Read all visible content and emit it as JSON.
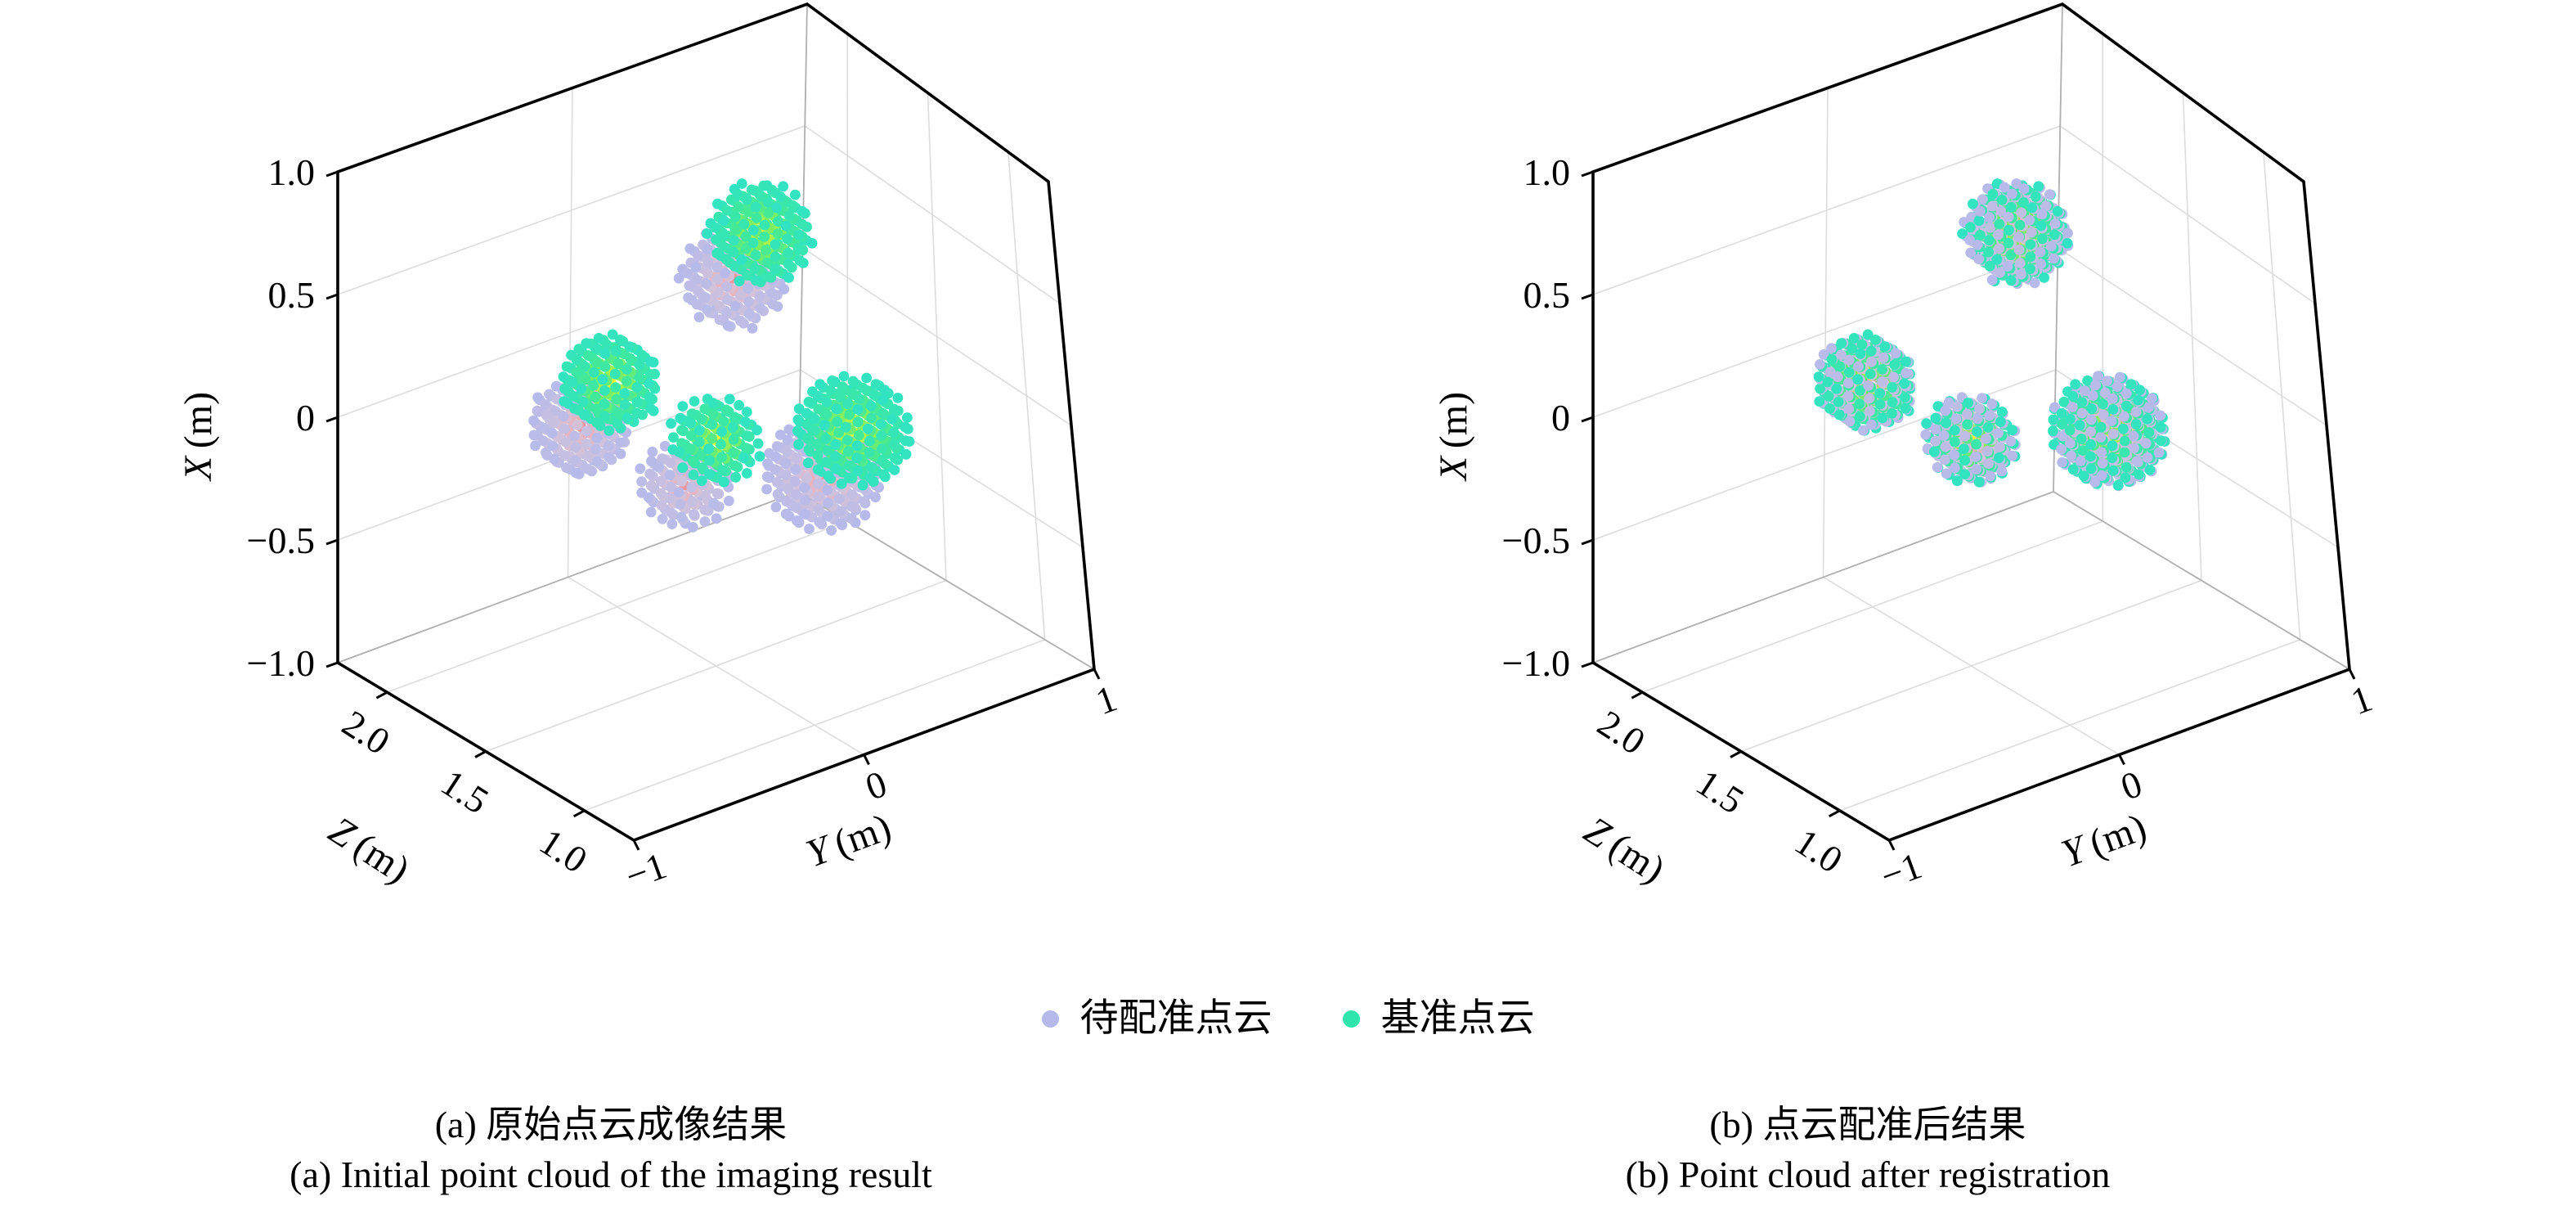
{
  "figure": {
    "legend": {
      "items": [
        {
          "label": "待配准点云",
          "color": "#b6baea"
        },
        {
          "label": "基准点云",
          "color": "#2ee6ad"
        }
      ]
    }
  },
  "chart_data": [
    {
      "type": "scatter",
      "subtype": "scatter3d-pointcloud",
      "title": "(a) 原始点云成像结果",
      "subtitle": "(a) Initial point cloud of the imaging result",
      "registered": false,
      "grid": true,
      "legend_position": "bottom-center",
      "axes": {
        "x": {
          "label_letter": "X",
          "label_unit": "(m)",
          "range": [
            -1,
            1
          ],
          "ticks": [
            "1.0",
            "0.5",
            "0",
            "−0.5",
            "−1.0"
          ],
          "tick_values": [
            1,
            0.5,
            0,
            -0.5,
            -1
          ]
        },
        "y": {
          "label_letter": "Y",
          "label_unit": "(m)",
          "range": [
            -1,
            1
          ],
          "ticks": [
            "−1",
            "0",
            "1"
          ],
          "tick_values": [
            -1,
            0,
            1
          ]
        },
        "z": {
          "label_letter": "Z",
          "label_unit": "(m)",
          "range": [
            0.75,
            2.25
          ],
          "ticks": [
            "2.0",
            "1.5",
            "1.0"
          ],
          "tick_values": [
            2,
            1.5,
            1
          ]
        }
      },
      "lattice_spacing": 0.052,
      "series": [
        {
          "name": "待配准点云",
          "marker_color": "#b6baea",
          "lattice_offset": 0,
          "colormap": [
            [
              0,
              "#b6baea"
            ],
            [
              0.5,
              "#d2c3db"
            ],
            [
              0.78,
              "#eeafb7"
            ],
            [
              1,
              "#f0959b"
            ]
          ],
          "clusters": [
            {
              "y": 0.2,
              "z": 1.58,
              "x": 0.48,
              "r": 0.19
            },
            {
              "y": -0.4,
              "z": 1.68,
              "x": 0.03,
              "r": 0.18
            },
            {
              "y": 0.0,
              "z": 1.63,
              "x": -0.32,
              "r": 0.16
            },
            {
              "y": 0.55,
              "z": 1.58,
              "x": -0.45,
              "r": 0.2
            }
          ]
        },
        {
          "name": "基准点云",
          "marker_color": "#2ee6ad",
          "lattice_offset": 0,
          "colormap": [
            [
              0,
              "#31e3c4"
            ],
            [
              0.35,
              "#3ee99e"
            ],
            [
              0.6,
              "#7cee62"
            ],
            [
              0.82,
              "#c9f243"
            ],
            [
              1,
              "#f3f437"
            ]
          ],
          "clusters": [
            {
              "y": 0.2,
              "z": 1.4,
              "x": 0.75,
              "r": 0.19
            },
            {
              "y": -0.4,
              "z": 1.5,
              "x": 0.3,
              "r": 0.18
            },
            {
              "y": 0.0,
              "z": 1.45,
              "x": -0.05,
              "r": 0.16
            },
            {
              "y": 0.55,
              "z": 1.4,
              "x": -0.18,
              "r": 0.2
            }
          ]
        }
      ]
    },
    {
      "type": "scatter",
      "subtype": "scatter3d-pointcloud",
      "title": "(b) 点云配准后结果",
      "subtitle": "(b) Point cloud after registration",
      "registered": true,
      "grid": true,
      "legend_position": "bottom-center",
      "axes": {
        "x": {
          "label_letter": "X",
          "label_unit": "(m)",
          "range": [
            -1,
            1
          ],
          "ticks": [
            "1.0",
            "0.5",
            "0",
            "−0.5",
            "−1.0"
          ],
          "tick_values": [
            1,
            0.5,
            0,
            -0.5,
            -1
          ]
        },
        "y": {
          "label_letter": "Y",
          "label_unit": "(m)",
          "range": [
            -1,
            1
          ],
          "ticks": [
            "−1",
            "0",
            "1"
          ],
          "tick_values": [
            -1,
            0,
            1
          ]
        },
        "z": {
          "label_letter": "Z",
          "label_unit": "(m)",
          "range": [
            0.75,
            2.25
          ],
          "ticks": [
            "2.0",
            "1.5",
            "1.0"
          ],
          "tick_values": [
            2,
            1.5,
            1
          ]
        }
      },
      "lattice_spacing": 0.052,
      "series": [
        {
          "name": "待配准点云",
          "marker_color": "#b6baea",
          "lattice_offset": 0.5,
          "colormap": [
            [
              0,
              "#b6baea"
            ],
            [
              0.5,
              "#d2c3db"
            ],
            [
              0.78,
              "#eeafb7"
            ],
            [
              1,
              "#f0959b"
            ]
          ],
          "clusters": [
            {
              "y": 0.2,
              "z": 1.4,
              "x": 0.75,
              "r": 0.19
            },
            {
              "y": -0.4,
              "z": 1.5,
              "x": 0.3,
              "r": 0.18
            },
            {
              "y": 0.0,
              "z": 1.45,
              "x": -0.05,
              "r": 0.16
            },
            {
              "y": 0.55,
              "z": 1.4,
              "x": -0.18,
              "r": 0.2
            }
          ]
        },
        {
          "name": "基准点云",
          "marker_color": "#2ee6ad",
          "lattice_offset": 0,
          "colormap": [
            [
              0,
              "#31e3c4"
            ],
            [
              0.35,
              "#3ee99e"
            ],
            [
              0.6,
              "#7cee62"
            ],
            [
              0.82,
              "#c9f243"
            ],
            [
              1,
              "#f3f437"
            ]
          ],
          "clusters": [
            {
              "y": 0.2,
              "z": 1.4,
              "x": 0.75,
              "r": 0.19
            },
            {
              "y": -0.4,
              "z": 1.5,
              "x": 0.3,
              "r": 0.18
            },
            {
              "y": 0.0,
              "z": 1.45,
              "x": -0.05,
              "r": 0.16
            },
            {
              "y": 0.55,
              "z": 1.4,
              "x": -0.18,
              "r": 0.2
            }
          ]
        }
      ]
    }
  ]
}
